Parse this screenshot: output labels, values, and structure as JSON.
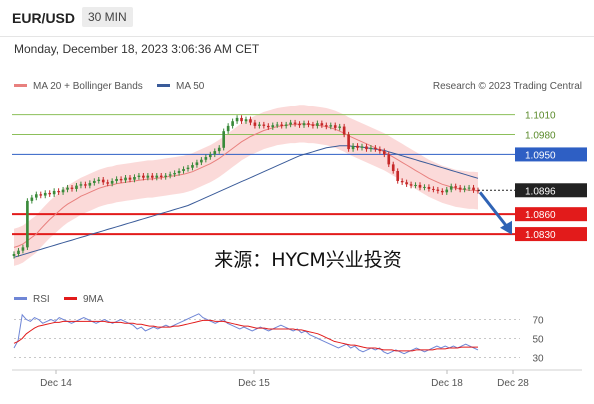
{
  "header": {
    "symbol": "EUR/USD",
    "timeframe": "30 MIN",
    "timestamp": "Monday, December 18, 2023 3:06:36 AM CET"
  },
  "legend": {
    "ma20_label": "MA 20 + Bollinger Bands",
    "ma50_label": "MA 50",
    "credit": "Research © 2023 Trading Central"
  },
  "watermark": "来源：HYCM兴业投资",
  "colors": {
    "ma20": "#e8807e",
    "ma50": "#3a5b99",
    "band": "#fad4d2",
    "resistance": "#8cbf5a",
    "pivot": "#2e5fc4",
    "support": "#e21b1b",
    "candle_up": "#3a8a3a",
    "candle_down": "#c62828",
    "rsi": "#6f86d6",
    "rsi_ma": "#e21b1b",
    "arrow": "#2f63b5"
  },
  "chart_data": [
    {
      "type": "candlestick",
      "series": [
        {
          "name": "MA 20 + Bollinger Bands"
        },
        {
          "name": "MA 50"
        }
      ],
      "ylim": [
        1.08,
        1.1035
      ],
      "x_ticks": [
        "Dec 14",
        "Dec 15",
        "Dec 18",
        "Dec 28"
      ],
      "current_price": "1.0896",
      "levels": [
        {
          "label": "1.1010",
          "value": 1.101,
          "kind": "resistance"
        },
        {
          "label": "1.0980",
          "value": 1.098,
          "kind": "resistance"
        },
        {
          "label": "1.0950",
          "value": 1.095,
          "kind": "pivot"
        },
        {
          "label": "1.0860",
          "value": 1.086,
          "kind": "support"
        },
        {
          "label": "1.0830",
          "value": 1.083,
          "kind": "support"
        }
      ],
      "close": [
        1.08,
        1.0805,
        1.081,
        1.088,
        1.0885,
        1.089,
        1.0888,
        1.0892,
        1.089,
        1.0895,
        1.0893,
        1.0897,
        1.09,
        1.0898,
        1.0903,
        1.0905,
        1.0903,
        1.0907,
        1.091,
        1.0912,
        1.0908,
        1.0906,
        1.091,
        1.0913,
        1.0911,
        1.0915,
        1.0912,
        1.0916,
        1.0918,
        1.0915,
        1.0918,
        1.0915,
        1.0918,
        1.0916,
        1.0918,
        1.092,
        1.0922,
        1.0925,
        1.0928,
        1.093,
        1.0934,
        1.0938,
        1.0942,
        1.0946,
        1.095,
        1.0955,
        1.096,
        1.0985,
        1.0993,
        1.1,
        1.1005,
        1.1,
        1.1003,
        1.0998,
        1.0993,
        1.0995,
        1.0993,
        1.0991,
        1.0994,
        1.0995,
        1.0993,
        1.0995,
        1.0998,
        1.0996,
        1.0994,
        1.0997,
        1.0995,
        1.0993,
        1.0997,
        1.0994,
        1.0992,
        1.0994,
        1.099,
        1.0992,
        1.098,
        1.0958,
        1.0963,
        1.096,
        1.0962,
        1.0958,
        1.096,
        1.0958,
        1.0955,
        1.095,
        1.0935,
        1.0925,
        1.091,
        1.0908,
        1.0905,
        1.0903,
        1.0904,
        1.09,
        1.0901,
        1.0898,
        1.0897,
        1.0895,
        1.0893,
        1.0897,
        1.0902,
        1.09,
        1.0897,
        1.0899,
        1.09,
        1.0896,
        1.0895
      ],
      "ma20": [
        1.081,
        1.0812,
        1.0815,
        1.082,
        1.0825,
        1.083,
        1.0838,
        1.0845,
        1.0852,
        1.0858,
        1.0864,
        1.087,
        1.0875,
        1.0879,
        1.0883,
        1.0887,
        1.089,
        1.0893,
        1.0896,
        1.0899,
        1.0901,
        1.0903,
        1.0904,
        1.0906,
        1.0907,
        1.0908,
        1.0909,
        1.091,
        1.0911,
        1.0912,
        1.0913,
        1.0913,
        1.0914,
        1.0915,
        1.0916,
        1.0917,
        1.0918,
        1.0919,
        1.092,
        1.0922,
        1.0924,
        1.0927,
        1.093,
        1.0933,
        1.0936,
        1.094,
        1.0944,
        1.0949,
        1.0954,
        1.0959,
        1.0964,
        1.0969,
        1.0973,
        1.0977,
        1.098,
        1.0983,
        1.0986,
        1.0988,
        1.099,
        1.0992,
        1.0993,
        1.0994,
        1.0995,
        1.0995,
        1.0996,
        1.0996,
        1.0995,
        1.0995,
        1.0994,
        1.0993,
        1.0992,
        1.099,
        1.0988,
        1.0985,
        1.0982,
        1.0978,
        1.0975,
        1.0972,
        1.0969,
        1.0966,
        1.0963,
        1.096,
        1.0957,
        1.0954,
        1.095,
        1.0946,
        1.0942,
        1.0938,
        1.0934,
        1.093,
        1.0926,
        1.0922,
        1.0918,
        1.0914,
        1.0911,
        1.0908,
        1.0905,
        1.0903,
        1.0901,
        1.0899,
        1.0898,
        1.0897,
        1.0896,
        1.0896,
        1.0895
      ],
      "ma50": [
        1.0795,
        1.0797,
        1.0799,
        1.0801,
        1.0803,
        1.0805,
        1.0807,
        1.0809,
        1.0811,
        1.0813,
        1.0815,
        1.0817,
        1.0819,
        1.0821,
        1.0823,
        1.0825,
        1.0827,
        1.0829,
        1.0831,
        1.0833,
        1.0835,
        1.0837,
        1.0839,
        1.0841,
        1.0843,
        1.0845,
        1.0847,
        1.0849,
        1.0851,
        1.0853,
        1.0855,
        1.0857,
        1.0859,
        1.0861,
        1.0863,
        1.0865,
        1.0867,
        1.0869,
        1.0871,
        1.0873,
        1.0876,
        1.0879,
        1.0882,
        1.0885,
        1.0888,
        1.0891,
        1.0894,
        1.0897,
        1.09,
        1.0903,
        1.0906,
        1.0909,
        1.0912,
        1.0915,
        1.0918,
        1.0921,
        1.0924,
        1.0927,
        1.093,
        1.0933,
        1.0936,
        1.0939,
        1.0942,
        1.0945,
        1.0948,
        1.095,
        1.0952,
        1.0954,
        1.0956,
        1.0958,
        1.096,
        1.0961,
        1.0962,
        1.0963,
        1.0963,
        1.0963,
        1.0962,
        1.0962,
        1.0961,
        1.096,
        1.0959,
        1.0958,
        1.0957,
        1.0956,
        1.0954,
        1.0952,
        1.095,
        1.0948,
        1.0946,
        1.0944,
        1.0942,
        1.094,
        1.0938,
        1.0936,
        1.0934,
        1.0932,
        1.093,
        1.0928,
        1.0926,
        1.0924,
        1.0922,
        1.092,
        1.0918,
        1.0916,
        1.0914
      ]
    },
    {
      "type": "line",
      "series": [
        {
          "name": "RSI"
        },
        {
          "name": "9MA"
        }
      ],
      "ylim": [
        20,
        80
      ],
      "y_ticks": [
        70,
        50,
        30
      ],
      "rsi": [
        40,
        48,
        75,
        70,
        68,
        72,
        70,
        66,
        68,
        70,
        68,
        72,
        70,
        68,
        66,
        68,
        70,
        72,
        70,
        68,
        66,
        68,
        70,
        68,
        66,
        68,
        70,
        68,
        66,
        64,
        60,
        62,
        58,
        60,
        62,
        60,
        62,
        64,
        62,
        64,
        66,
        68,
        70,
        72,
        74,
        76,
        72,
        70,
        68,
        66,
        68,
        70,
        66,
        64,
        62,
        60,
        62,
        60,
        58,
        60,
        62,
        60,
        58,
        60,
        62,
        64,
        62,
        60,
        58,
        60,
        56,
        58,
        54,
        52,
        50,
        48,
        46,
        44,
        42,
        40,
        42,
        44,
        40,
        42,
        38,
        36,
        38,
        40,
        38,
        40,
        36,
        34,
        36,
        38,
        36,
        34,
        36,
        38,
        40,
        38,
        36,
        38,
        40,
        42,
        40,
        42,
        40,
        42,
        40,
        42,
        44,
        42,
        40,
        38
      ],
      "rsi_ma": [
        45,
        47,
        50,
        55,
        58,
        61,
        63,
        64,
        65,
        66,
        67,
        67,
        68,
        68,
        68,
        68,
        68,
        68,
        68,
        68,
        68,
        68,
        68,
        67,
        67,
        67,
        67,
        66,
        66,
        66,
        65,
        65,
        64,
        63,
        63,
        62,
        62,
        62,
        62,
        63,
        63,
        64,
        65,
        66,
        67,
        68,
        69,
        69,
        69,
        68,
        68,
        68,
        67,
        66,
        65,
        64,
        63,
        63,
        62,
        61,
        61,
        61,
        60,
        60,
        60,
        60,
        60,
        60,
        60,
        59,
        59,
        58,
        57,
        56,
        55,
        53,
        51,
        49,
        47,
        46,
        45,
        44,
        43,
        43,
        42,
        41,
        40,
        40,
        40,
        39,
        38,
        38,
        38,
        37,
        37,
        37,
        37,
        37,
        38,
        38,
        38,
        38,
        38,
        39,
        39,
        39,
        40,
        40,
        40,
        41,
        41,
        41,
        41,
        41
      ]
    }
  ],
  "rsi_legend": {
    "rsi_label": "RSI",
    "ma_label": "9MA"
  }
}
